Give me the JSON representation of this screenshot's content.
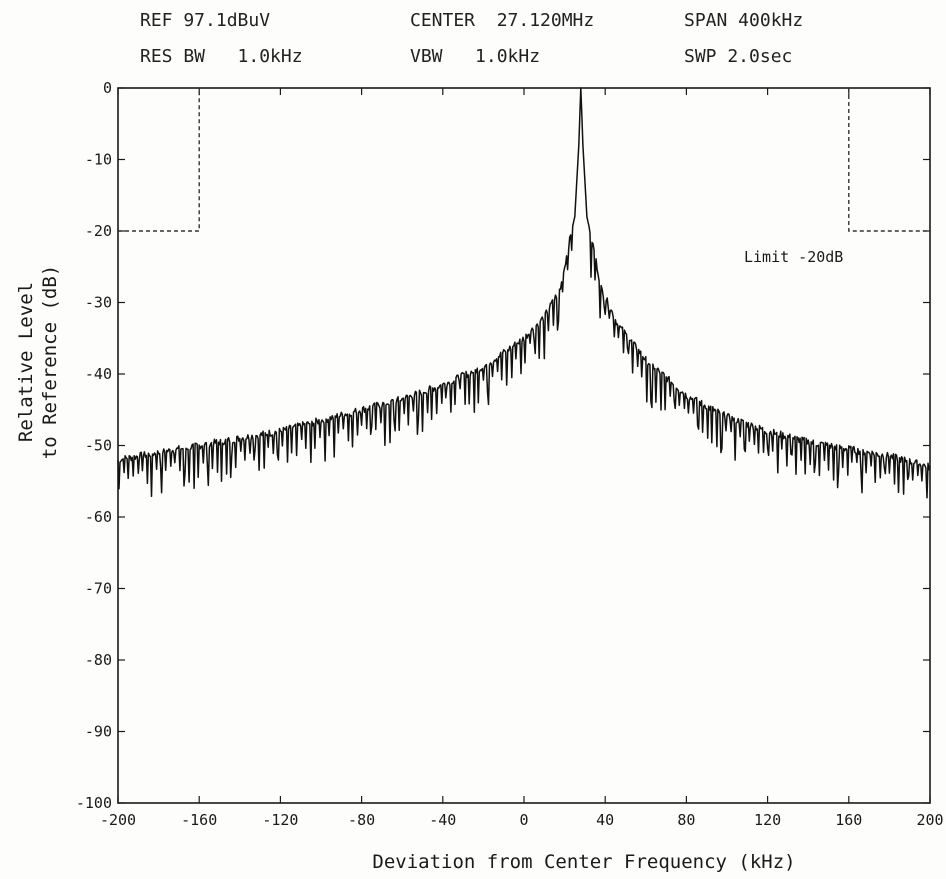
{
  "header": {
    "ref": "REF 97.1dBuV",
    "center": "CENTER  27.120MHz",
    "span": "SPAN 400kHz",
    "res_bw": "RES BW   1.0kHz",
    "vbw": "VBW   1.0kHz",
    "swp": "SWP 2.0sec"
  },
  "chart_data": {
    "type": "line",
    "title": "",
    "xlabel": "Deviation from Center Frequency (kHz)",
    "ylabel_line1": "Relative Level",
    "ylabel_line2": "to Reference (dB)",
    "xlim": [
      -200,
      200
    ],
    "ylim": [
      -100,
      0
    ],
    "x_ticks": [
      -200,
      -160,
      -120,
      -80,
      -40,
      0,
      40,
      80,
      120,
      160,
      200
    ],
    "y_ticks": [
      0,
      -10,
      -20,
      -30,
      -40,
      -50,
      -60,
      -70,
      -80,
      -90,
      -100
    ],
    "grid": false,
    "annotation": "Limit -20dB",
    "limit_mask": [
      {
        "x": [
          -200,
          -160,
          -160
        ],
        "y": [
          -20,
          -20,
          0
        ]
      },
      {
        "x": [
          160,
          160,
          200
        ],
        "y": [
          0,
          -20,
          -20
        ]
      }
    ],
    "series": [
      {
        "style": "solid",
        "peak_x": 28,
        "x": [
          -200,
          -180,
          -160,
          -140,
          -120,
          -100,
          -80,
          -60,
          -40,
          -20,
          0,
          10,
          18,
          22,
          25,
          27,
          28,
          29,
          31,
          34,
          38,
          46,
          60,
          80,
          100,
          120,
          140,
          160,
          180,
          200
        ],
        "y": [
          -52,
          -51,
          -50,
          -49,
          -48,
          -46.5,
          -45,
          -43.5,
          -41.5,
          -39,
          -35,
          -32,
          -28,
          -22,
          -18,
          -8,
          0,
          -8,
          -18,
          -22,
          -28,
          -33,
          -38,
          -43,
          -46,
          -48,
          -49.5,
          -50.5,
          -51.5,
          -53
        ],
        "dip_depth_db": 4
      }
    ]
  }
}
